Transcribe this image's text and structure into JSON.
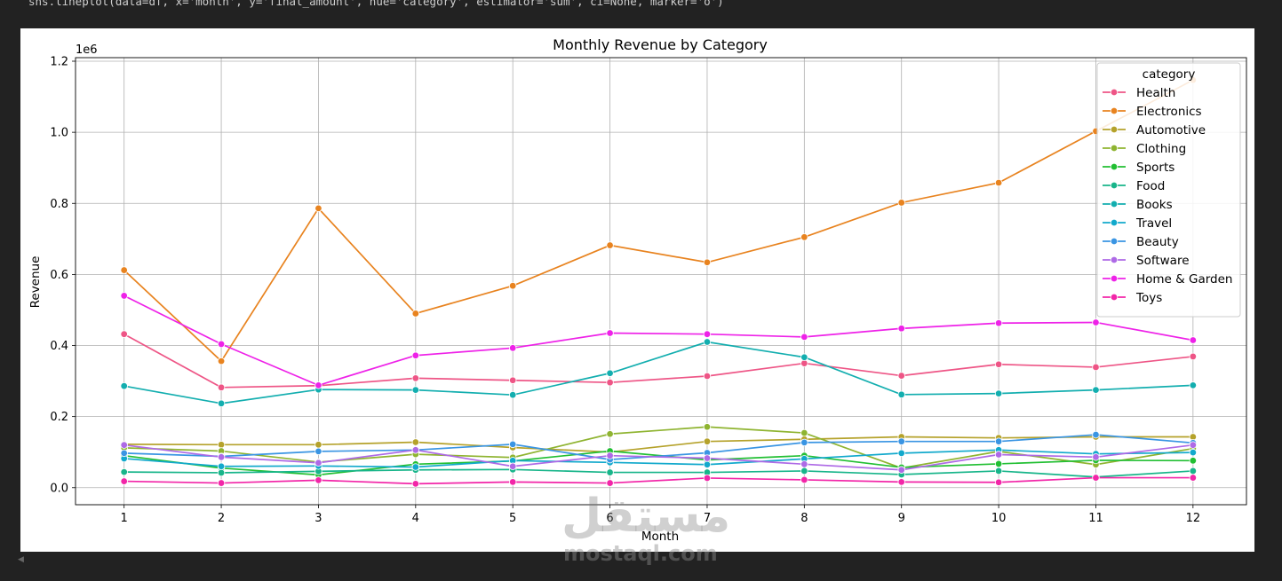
{
  "code": "sns.lineplot(data=df, x='month', y='final_amount', hue='category', estimator='sum', ci=None, marker='o')",
  "watermark": {
    "arabic": "مستقل",
    "latin": "mostaql.com"
  },
  "chart_data": {
    "type": "line",
    "title": "Monthly Revenue by Category",
    "xlabel": "Month",
    "ylabel": "Revenue",
    "y_offset_label": "1e6",
    "xlim": [
      0.5,
      12.55
    ],
    "ylim": [
      -0.048,
      1.21
    ],
    "x_ticks": [
      1,
      2,
      3,
      4,
      5,
      6,
      7,
      8,
      9,
      10,
      11,
      12
    ],
    "y_ticks": [
      0.0,
      0.2,
      0.4,
      0.6,
      0.8,
      1.0,
      1.2
    ],
    "y_tick_labels": [
      "0.0",
      "0.2",
      "0.4",
      "0.6",
      "0.8",
      "1.0",
      "1.2"
    ],
    "grid": true,
    "legend_title": "category",
    "legend_position": "top-right",
    "x": [
      1,
      2,
      3,
      4,
      5,
      6,
      7,
      8,
      9,
      10,
      11,
      12
    ],
    "series": [
      {
        "name": "Health",
        "color": "#ee5586",
        "values": [
          0.432,
          0.282,
          0.287,
          0.308,
          0.302,
          0.296,
          0.314,
          0.35,
          0.315,
          0.347,
          0.339,
          0.369
        ]
      },
      {
        "name": "Electronics",
        "color": "#e8831f",
        "values": [
          0.612,
          0.356,
          0.786,
          0.49,
          0.568,
          0.682,
          0.634,
          0.705,
          0.802,
          0.858,
          1.003,
          1.147
        ]
      },
      {
        "name": "Automotive",
        "color": "#b5a22b",
        "values": [
          0.122,
          0.121,
          0.121,
          0.128,
          0.113,
          0.1,
          0.13,
          0.136,
          0.143,
          0.14,
          0.143,
          0.143
        ]
      },
      {
        "name": "Clothing",
        "color": "#8fb431",
        "values": [
          0.112,
          0.103,
          0.072,
          0.094,
          0.085,
          0.151,
          0.171,
          0.154,
          0.055,
          0.102,
          0.065,
          0.11
        ]
      },
      {
        "name": "Sports",
        "color": "#22bf33",
        "values": [
          0.09,
          0.055,
          0.036,
          0.066,
          0.075,
          0.103,
          0.078,
          0.09,
          0.057,
          0.067,
          0.077,
          0.076
        ]
      },
      {
        "name": "Food",
        "color": "#18b58a",
        "values": [
          0.044,
          0.042,
          0.046,
          0.05,
          0.051,
          0.043,
          0.043,
          0.047,
          0.037,
          0.047,
          0.03,
          0.047
        ]
      },
      {
        "name": "Books",
        "color": "#13aeaf",
        "values": [
          0.286,
          0.237,
          0.276,
          0.275,
          0.261,
          0.322,
          0.41,
          0.367,
          0.262,
          0.265,
          0.275,
          0.288
        ]
      },
      {
        "name": "Travel",
        "color": "#12a9cc",
        "values": [
          0.082,
          0.06,
          0.061,
          0.058,
          0.076,
          0.071,
          0.065,
          0.081,
          0.097,
          0.106,
          0.095,
          0.099
        ]
      },
      {
        "name": "Beauty",
        "color": "#3a95e3",
        "values": [
          0.097,
          0.088,
          0.102,
          0.106,
          0.122,
          0.079,
          0.098,
          0.127,
          0.13,
          0.13,
          0.149,
          0.126
        ]
      },
      {
        "name": "Software",
        "color": "#ae6ae6",
        "values": [
          0.12,
          0.086,
          0.07,
          0.106,
          0.06,
          0.09,
          0.083,
          0.066,
          0.05,
          0.093,
          0.086,
          0.12
        ]
      },
      {
        "name": "Home & Garden",
        "color": "#ee22e8",
        "values": [
          0.54,
          0.404,
          0.288,
          0.372,
          0.393,
          0.435,
          0.432,
          0.424,
          0.448,
          0.463,
          0.465,
          0.415
        ]
      },
      {
        "name": "Toys",
        "color": "#f226a8",
        "values": [
          0.018,
          0.013,
          0.021,
          0.011,
          0.016,
          0.013,
          0.027,
          0.022,
          0.016,
          0.015,
          0.028,
          0.028
        ]
      }
    ]
  }
}
